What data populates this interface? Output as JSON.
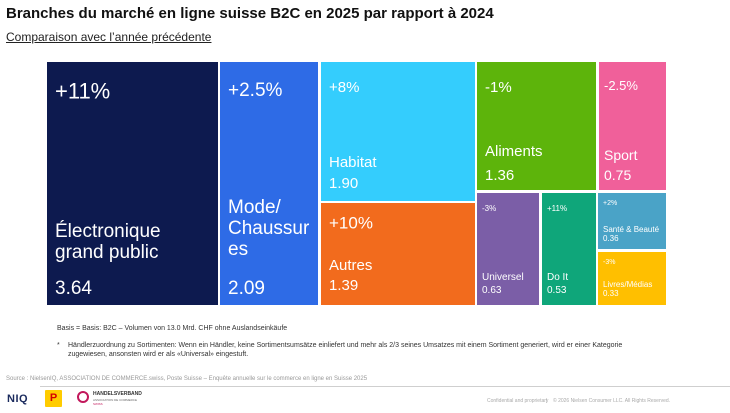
{
  "header": {
    "title": "Branches du marché en ligne suisse B2C en 2025 par rapport à 2024",
    "subtitle": "Comparaison avec l’année précédente"
  },
  "chart_data": {
    "type": "treemap",
    "title": "Branches du marché en ligne suisse B2C en 2025 par rapport à 2024",
    "subtitle": "Comparaison avec l’année précédente",
    "items": [
      {
        "name": "Électronique grand public",
        "label_lines": [
          "Électronique",
          "grand public"
        ],
        "value": 3.64,
        "value_text": "3.64",
        "change": "+11%",
        "color": "#0d1a4f"
      },
      {
        "name": "Mode/ Chaussures",
        "label_lines": [
          "Mode/",
          "Chaussur",
          "es"
        ],
        "value": 2.09,
        "value_text": "2.09",
        "change": "+2.5%",
        "color": "#2e6be6"
      },
      {
        "name": "Habitat",
        "label_lines": [
          "Habitat"
        ],
        "value": 1.9,
        "value_text": "1.90",
        "change": "+8%",
        "color": "#34cdfd"
      },
      {
        "name": "Autres",
        "label_lines": [
          "Autres"
        ],
        "value": 1.39,
        "value_text": "1.39",
        "change": "+10%",
        "color": "#f26b1d"
      },
      {
        "name": "Aliments",
        "label_lines": [
          "Aliments"
        ],
        "value": 1.36,
        "value_text": "1.36",
        "change": "-1%",
        "color": "#5db40b"
      },
      {
        "name": "Sport",
        "label_lines": [
          "Sport"
        ],
        "value": 0.75,
        "value_text": "0.75",
        "change": "-2.5%",
        "color": "#f0609a"
      },
      {
        "name": "Universel",
        "label_lines": [
          "Universel"
        ],
        "value": 0.63,
        "value_text": "0.63",
        "change": "-3%",
        "color": "#7b5ea7"
      },
      {
        "name": "Do It",
        "label_lines": [
          "Do It"
        ],
        "value": 0.53,
        "value_text": "0.53",
        "change": "+11%",
        "color": "#0fa67a"
      },
      {
        "name": "Santé & Beauté",
        "label_lines": [
          "Santé & Beauté"
        ],
        "value": 0.36,
        "value_text": "0.36",
        "change": "+2%",
        "color": "#4aa3c7"
      },
      {
        "name": "Livres/Médias",
        "label_lines": [
          "Livres/Médias"
        ],
        "value": 0.33,
        "value_text": "0.33",
        "change": "-3%",
        "color": "#ffbf00"
      }
    ]
  },
  "notes": {
    "basis": "Basis = Basis: B2C – Volumen von 13.0 Mrd. CHF ohne Auslandseinkäufe",
    "star": "*",
    "footnote": "Händlerzuordnung zu Sortimenten: Wenn ein Händler, keine Sortimentsumsätze einliefert und mehr als 2/3 seines Umsatzes mit einem Sortiment generiert, wird er einer Kategorie zugewiesen, ansonsten wird er als «Universal» eingestuft."
  },
  "source": "Source : NielsenIQ, ASSOCIATION DE COMMERCE.swiss, Poste Suisse – Enquête annuelle sur le commerce en ligne en Suisse 2025",
  "footer": {
    "confidential": "Confidential and proprietary",
    "separator": "|",
    "copyright": "© 2026 Nielsen Consumer LLC. All Rights Reserved."
  },
  "logos": {
    "niq": "NIQ",
    "post_mark": "P",
    "hv_name": "HANDELSVERBAND",
    "hv_tag": "ASSOCIATION DE COMMERCE",
    "hv_tag2": "SWISS"
  }
}
